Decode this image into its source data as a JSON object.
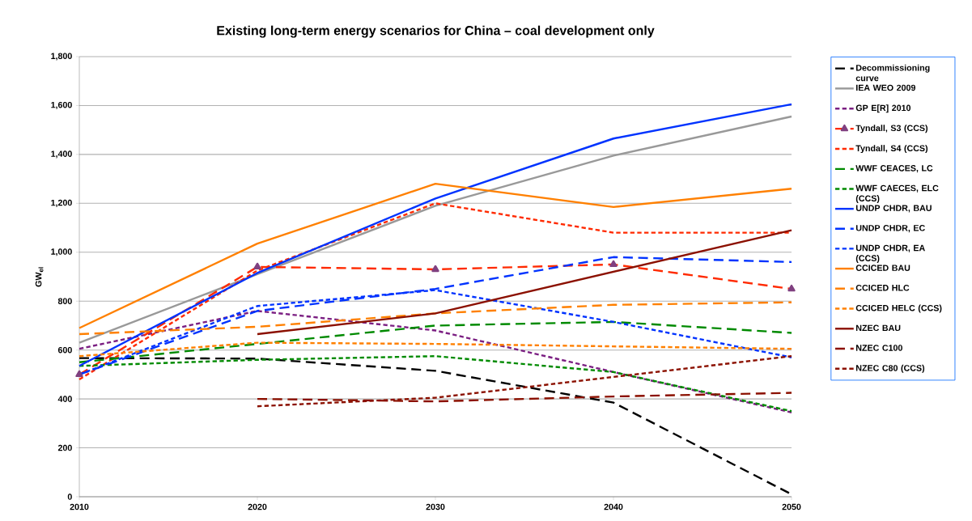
{
  "chart_data": {
    "type": "line",
    "title": "Existing long-term energy scenarios for China – coal development only",
    "ylabel": "GW$_{el}$",
    "x": [
      2010,
      2020,
      2030,
      2040,
      2050
    ],
    "xlim": [
      2010,
      2050
    ],
    "xticks": [
      2010,
      2020,
      2030,
      2040,
      2050
    ],
    "ylim": [
      0,
      1800
    ],
    "yticks": [
      0,
      200,
      400,
      600,
      800,
      {
        "value": 1000,
        "label": "1,000"
      },
      {
        "value": 1200,
        "label": "1,200"
      },
      {
        "value": 1400,
        "label": "1,400"
      },
      {
        "value": 1600,
        "label": "1,600"
      },
      {
        "value": 1800,
        "label": "1,800"
      }
    ],
    "grid": "y",
    "legend": "right",
    "marker": "none",
    "series": [
      {
        "name": "Decommissioning curve",
        "color": "#000000",
        "line_style": "dashed",
        "values": [
          567,
          565,
          515,
          385,
          10
        ]
      },
      {
        "name": "IEA WEO 2009",
        "color": "#999999",
        "line_style": "solid",
        "values": [
          630,
          910,
          1190,
          1395,
          1555
        ]
      },
      {
        "name": "GP E[R] 2010",
        "color": "#7b1f82",
        "line_style": "dotted",
        "values": [
          605,
          760,
          680,
          510,
          345
        ]
      },
      {
        "name": "Tyndall, S3 (CCS)",
        "color": "#ff2a00",
        "line_style": "dashed",
        "marker": "triangle",
        "values": [
          500,
          940,
          930,
          950,
          850
        ]
      },
      {
        "name": "Tyndall, S4 (CCS)",
        "color": "#ff2a00",
        "line_style": "dotted",
        "values": [
          480,
          925,
          1200,
          1080,
          1080
        ]
      },
      {
        "name": "WWF CEACES, LC",
        "color": "#008a00",
        "line_style": "dashed",
        "values": [
          550,
          625,
          700,
          715,
          670
        ]
      },
      {
        "name": "WWF CAECES, ELC (CCS)",
        "color": "#008a00",
        "line_style": "dotted",
        "values": [
          535,
          560,
          575,
          510,
          350
        ]
      },
      {
        "name": "UNDP CHDR, BAU",
        "color": "#0033ff",
        "line_style": "solid",
        "values": [
          535,
          915,
          1220,
          1465,
          1605
        ]
      },
      {
        "name": "UNDP CHDR, EC",
        "color": "#0033ff",
        "line_style": "dashed",
        "values": [
          500,
          760,
          850,
          980,
          960
        ]
      },
      {
        "name": "UNDP CHDR, EA (CCS)",
        "color": "#0033ff",
        "line_style": "dotted",
        "values": [
          500,
          780,
          845,
          715,
          570
        ]
      },
      {
        "name": "CCICED BAU",
        "color": "#ff8000",
        "line_style": "solid",
        "values": [
          690,
          1035,
          1280,
          1185,
          1260
        ]
      },
      {
        "name": "CCICED HLC",
        "color": "#ff8000",
        "line_style": "dashed",
        "values": [
          665,
          695,
          750,
          785,
          795
        ]
      },
      {
        "name": "CCICED HELC (CCS)",
        "color": "#ff8000",
        "line_style": "dotted",
        "values": [
          575,
          630,
          625,
          615,
          605
        ]
      },
      {
        "name": "NZEC BAU",
        "color": "#8b1000",
        "line_style": "solid",
        "values": [
          null,
          665,
          750,
          920,
          1090
        ]
      },
      {
        "name": "NZEC C100",
        "color": "#8b1000",
        "line_style": "dashed",
        "values": [
          null,
          400,
          390,
          410,
          425
        ]
      },
      {
        "name": "NZEC C80 (CCS)",
        "color": "#8b1000",
        "line_style": "dotted",
        "values": [
          null,
          370,
          405,
          490,
          575
        ]
      }
    ]
  }
}
